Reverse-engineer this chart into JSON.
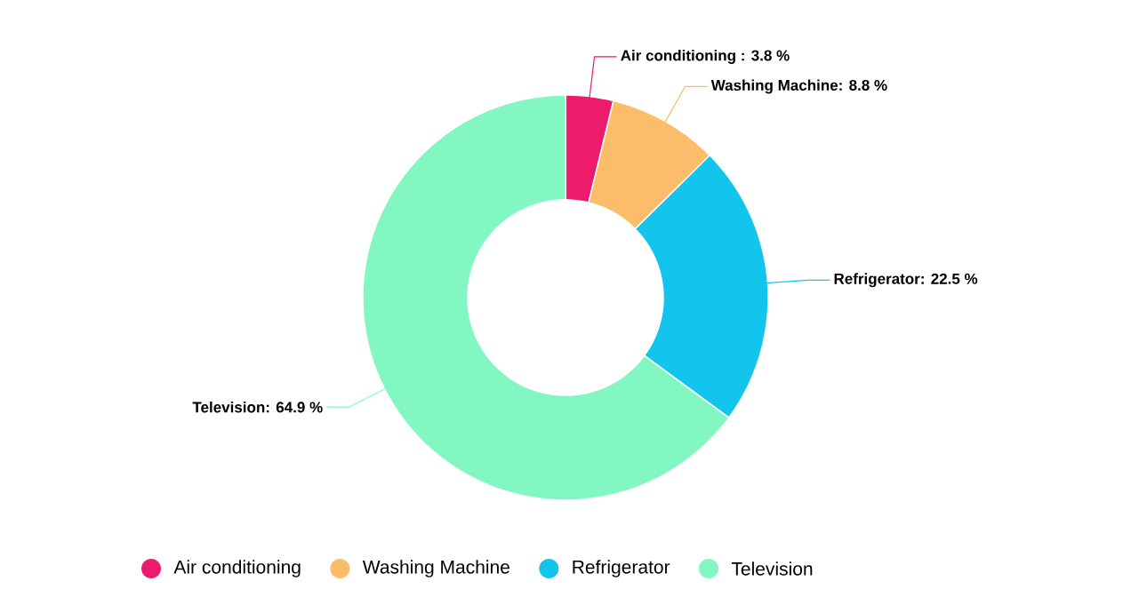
{
  "chart_data": {
    "type": "donut",
    "categories": [
      "Air conditioning",
      "Washing Machine",
      "Refrigerator",
      "Television"
    ],
    "values": [
      3.8,
      8.8,
      22.5,
      64.9
    ],
    "colors": [
      "#ec1b6b",
      "#fbbd6a",
      "#13c4ec",
      "#82f7c2"
    ],
    "value_labels": [
      "Air conditioning : 3.8 %",
      "Washing Machine: 8.8 %",
      "Refrigerator: 22.5 %",
      "Television: 64.9 %"
    ],
    "legend": "bottom"
  }
}
